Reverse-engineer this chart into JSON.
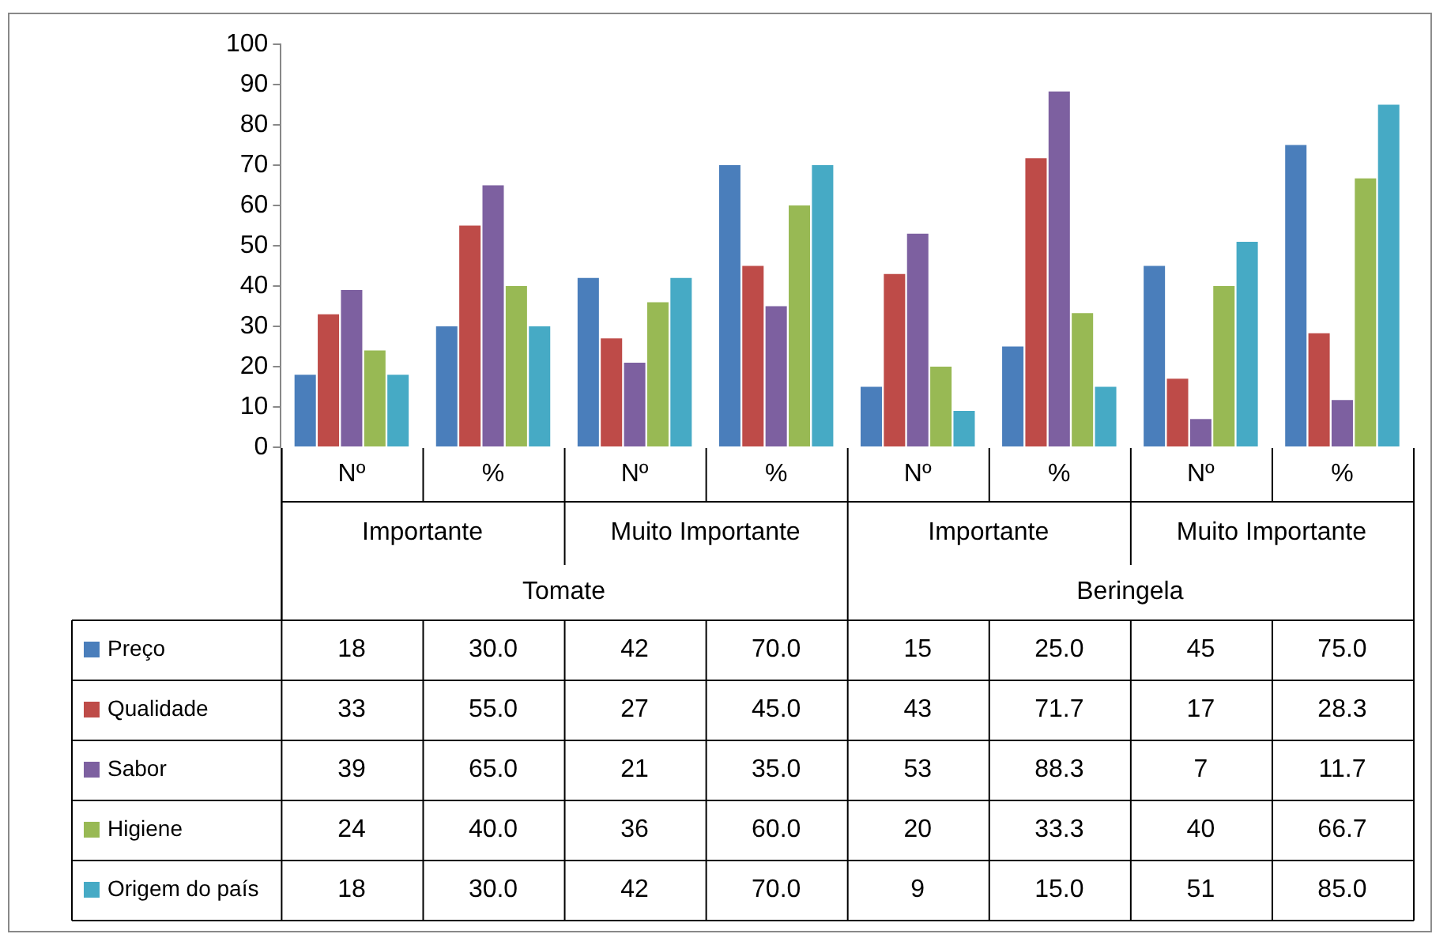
{
  "chart_data": {
    "type": "bar",
    "categories": [
      "Nº",
      "%",
      "Nº",
      "%",
      "Nº",
      "%",
      "Nº",
      "%"
    ],
    "annotations": [
      "Importante",
      "Muito Importante",
      "Importante",
      "Muito Importante",
      "Tomate",
      "Beringela"
    ],
    "series": [
      {
        "name": "Preço",
        "color": "#4a7ebb",
        "values": [
          18,
          30,
          42,
          70,
          15,
          25,
          45,
          75
        ],
        "value_labels": [
          "18",
          "30.0",
          "42",
          "70.0",
          "15",
          "25.0",
          "45",
          "75.0"
        ]
      },
      {
        "name": "Qualidade",
        "color": "#be4b48",
        "values": [
          33,
          55,
          27,
          45,
          43,
          71.7,
          17,
          28.3
        ],
        "value_labels": [
          "33",
          "55.0",
          "27",
          "45.0",
          "43",
          "71.7",
          "17",
          "28.3"
        ]
      },
      {
        "name": "Sabor",
        "color": "#7d60a0",
        "values": [
          39,
          65,
          21,
          35,
          53,
          88.3,
          7,
          11.7
        ],
        "value_labels": [
          "39",
          "65.0",
          "21",
          "35.0",
          "53",
          "88.3",
          "7",
          "11.7"
        ]
      },
      {
        "name": "Higiene",
        "color": "#98b954",
        "values": [
          24,
          40,
          36,
          60,
          20,
          33.3,
          40,
          66.7
        ],
        "value_labels": [
          "24",
          "40.0",
          "36",
          "60.0",
          "20",
          "33.3",
          "40",
          "66.7"
        ]
      },
      {
        "name": "Origem do país",
        "color": "#46aac5",
        "values": [
          18,
          30,
          42,
          70,
          9,
          15,
          51,
          85
        ],
        "value_labels": [
          "18",
          "30.0",
          "42",
          "70.0",
          "9",
          "15.0",
          "51",
          "85.0"
        ]
      }
    ],
    "ylim": [
      0,
      100
    ],
    "yticks": [
      0,
      10,
      20,
      30,
      40,
      50,
      60,
      70,
      80,
      90,
      100
    ],
    "grid": false,
    "legend": "bottom"
  }
}
